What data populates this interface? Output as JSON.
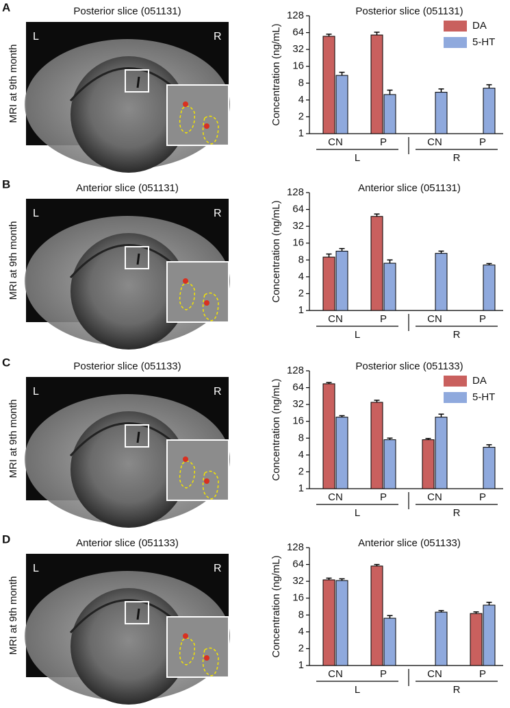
{
  "panels": [
    {
      "letter": "A",
      "image_title": "Posterior slice (051131)",
      "left": "L",
      "right": "R",
      "image_ylabel": "MRI at 9th month"
    },
    {
      "letter": "B",
      "image_title": "Anterior slice (051131)",
      "left": "L",
      "right": "R",
      "image_ylabel": "MRI at 9th month"
    },
    {
      "letter": "C",
      "image_title": "Posterior slice (051133)",
      "left": "L",
      "right": "R",
      "image_ylabel": "MRI at 9th month"
    },
    {
      "letter": "D",
      "image_title": "Anterior slice (051133)",
      "left": "L",
      "right": "R",
      "image_ylabel": "MRI at 9th month"
    }
  ],
  "chart_data": [
    {
      "type": "bar",
      "title": "Posterior slice (051131)",
      "ylabel": "Concentration (ng/mL)",
      "categories": [
        "CN",
        "P",
        "CN",
        "P"
      ],
      "group_labels": [
        "L",
        "R"
      ],
      "series": [
        {
          "name": "DA",
          "color": "#c9605e",
          "values": [
            55,
            58,
            null,
            null
          ],
          "errors": [
            5,
            7,
            null,
            null
          ]
        },
        {
          "name": "5-HT",
          "color": "#8fa9dd",
          "values": [
            11,
            5,
            5.5,
            6.5
          ],
          "errors": [
            1.5,
            1,
            0.8,
            1
          ]
        }
      ],
      "yscale": "log",
      "ylim": [
        1,
        128
      ],
      "yticks": [
        1,
        2,
        4,
        8,
        16,
        32,
        64,
        128
      ],
      "legend": "upper right"
    },
    {
      "type": "bar",
      "title": "Anterior slice (051131)",
      "ylabel": "Concentration (ng/mL)",
      "categories": [
        "CN",
        "P",
        "CN",
        "P"
      ],
      "group_labels": [
        "L",
        "R"
      ],
      "series": [
        {
          "color": "#c9605e",
          "values": [
            9,
            48,
            null,
            null
          ],
          "errors": [
            1.2,
            5,
            null,
            null
          ]
        },
        {
          "color": "#8fa9dd",
          "values": [
            11.5,
            7,
            10.5,
            6.5
          ],
          "errors": [
            1.3,
            1,
            1,
            0.4
          ]
        }
      ],
      "yscale": "log",
      "ylim": [
        1,
        128
      ],
      "yticks": [
        1,
        2,
        4,
        8,
        16,
        32,
        64,
        128
      ]
    },
    {
      "type": "bar",
      "title": "Posterior slice (051133)",
      "ylabel": "Concentration (ng/mL)",
      "categories": [
        "CN",
        "P",
        "CN",
        "P"
      ],
      "group_labels": [
        "L",
        "R"
      ],
      "series": [
        {
          "name": "DA",
          "color": "#c9605e",
          "values": [
            75,
            35,
            7.5,
            null
          ],
          "errors": [
            4,
            3,
            0.4,
            null
          ]
        },
        {
          "name": "5-HT",
          "color": "#8fa9dd",
          "values": [
            19,
            7.5,
            19,
            5.5
          ],
          "errors": [
            1.2,
            0.5,
            2.5,
            0.6
          ]
        }
      ],
      "yscale": "log",
      "ylim": [
        1,
        128
      ],
      "yticks": [
        1,
        2,
        4,
        8,
        16,
        32,
        64,
        128
      ],
      "legend": "upper right"
    },
    {
      "type": "bar",
      "title": "Anterior slice (051133)",
      "ylabel": "Concentration (ng/mL)",
      "categories": [
        "CN",
        "P",
        "CN",
        "P"
      ],
      "group_labels": [
        "L",
        "R"
      ],
      "series": [
        {
          "color": "#c9605e",
          "values": [
            34,
            60,
            null,
            8.5
          ],
          "errors": [
            2.5,
            4,
            null,
            0.6
          ]
        },
        {
          "color": "#8fa9dd",
          "values": [
            33,
            7,
            9,
            12
          ],
          "errors": [
            2.5,
            0.8,
            0.6,
            1.5
          ]
        }
      ],
      "yscale": "log",
      "ylim": [
        1,
        128
      ],
      "yticks": [
        1,
        2,
        4,
        8,
        16,
        32,
        64,
        128
      ]
    }
  ]
}
